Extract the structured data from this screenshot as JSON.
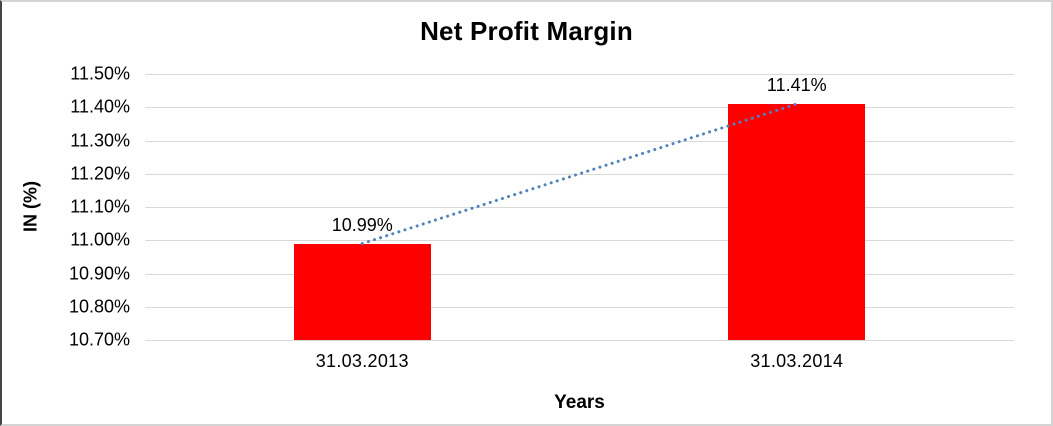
{
  "frame": {
    "background": "#ffffff",
    "border_color": "#d4d4d4"
  },
  "chart_data": {
    "type": "bar",
    "title": "Net Profit Margin",
    "xlabel": "Years",
    "ylabel": "IN (%)",
    "categories": [
      "31.03.2013",
      "31.03.2014"
    ],
    "values": [
      10.99,
      11.41
    ],
    "data_labels": [
      "10.99%",
      "11.41%"
    ],
    "ylim": [
      10.7,
      11.5
    ],
    "yticks": [
      10.7,
      10.8,
      10.9,
      11.0,
      11.1,
      11.2,
      11.3,
      11.4,
      11.5
    ],
    "ytick_labels": [
      "10.70%",
      "10.80%",
      "10.90%",
      "11.00%",
      "11.10%",
      "11.20%",
      "11.30%",
      "11.40%",
      "11.50%"
    ],
    "grid": true,
    "legend_position": "none",
    "bar_color": "#FF0000",
    "gridline_color": "#D9D9D9",
    "trendline": {
      "type": "linear",
      "style": "dotted",
      "color": "#4F81BD"
    }
  }
}
